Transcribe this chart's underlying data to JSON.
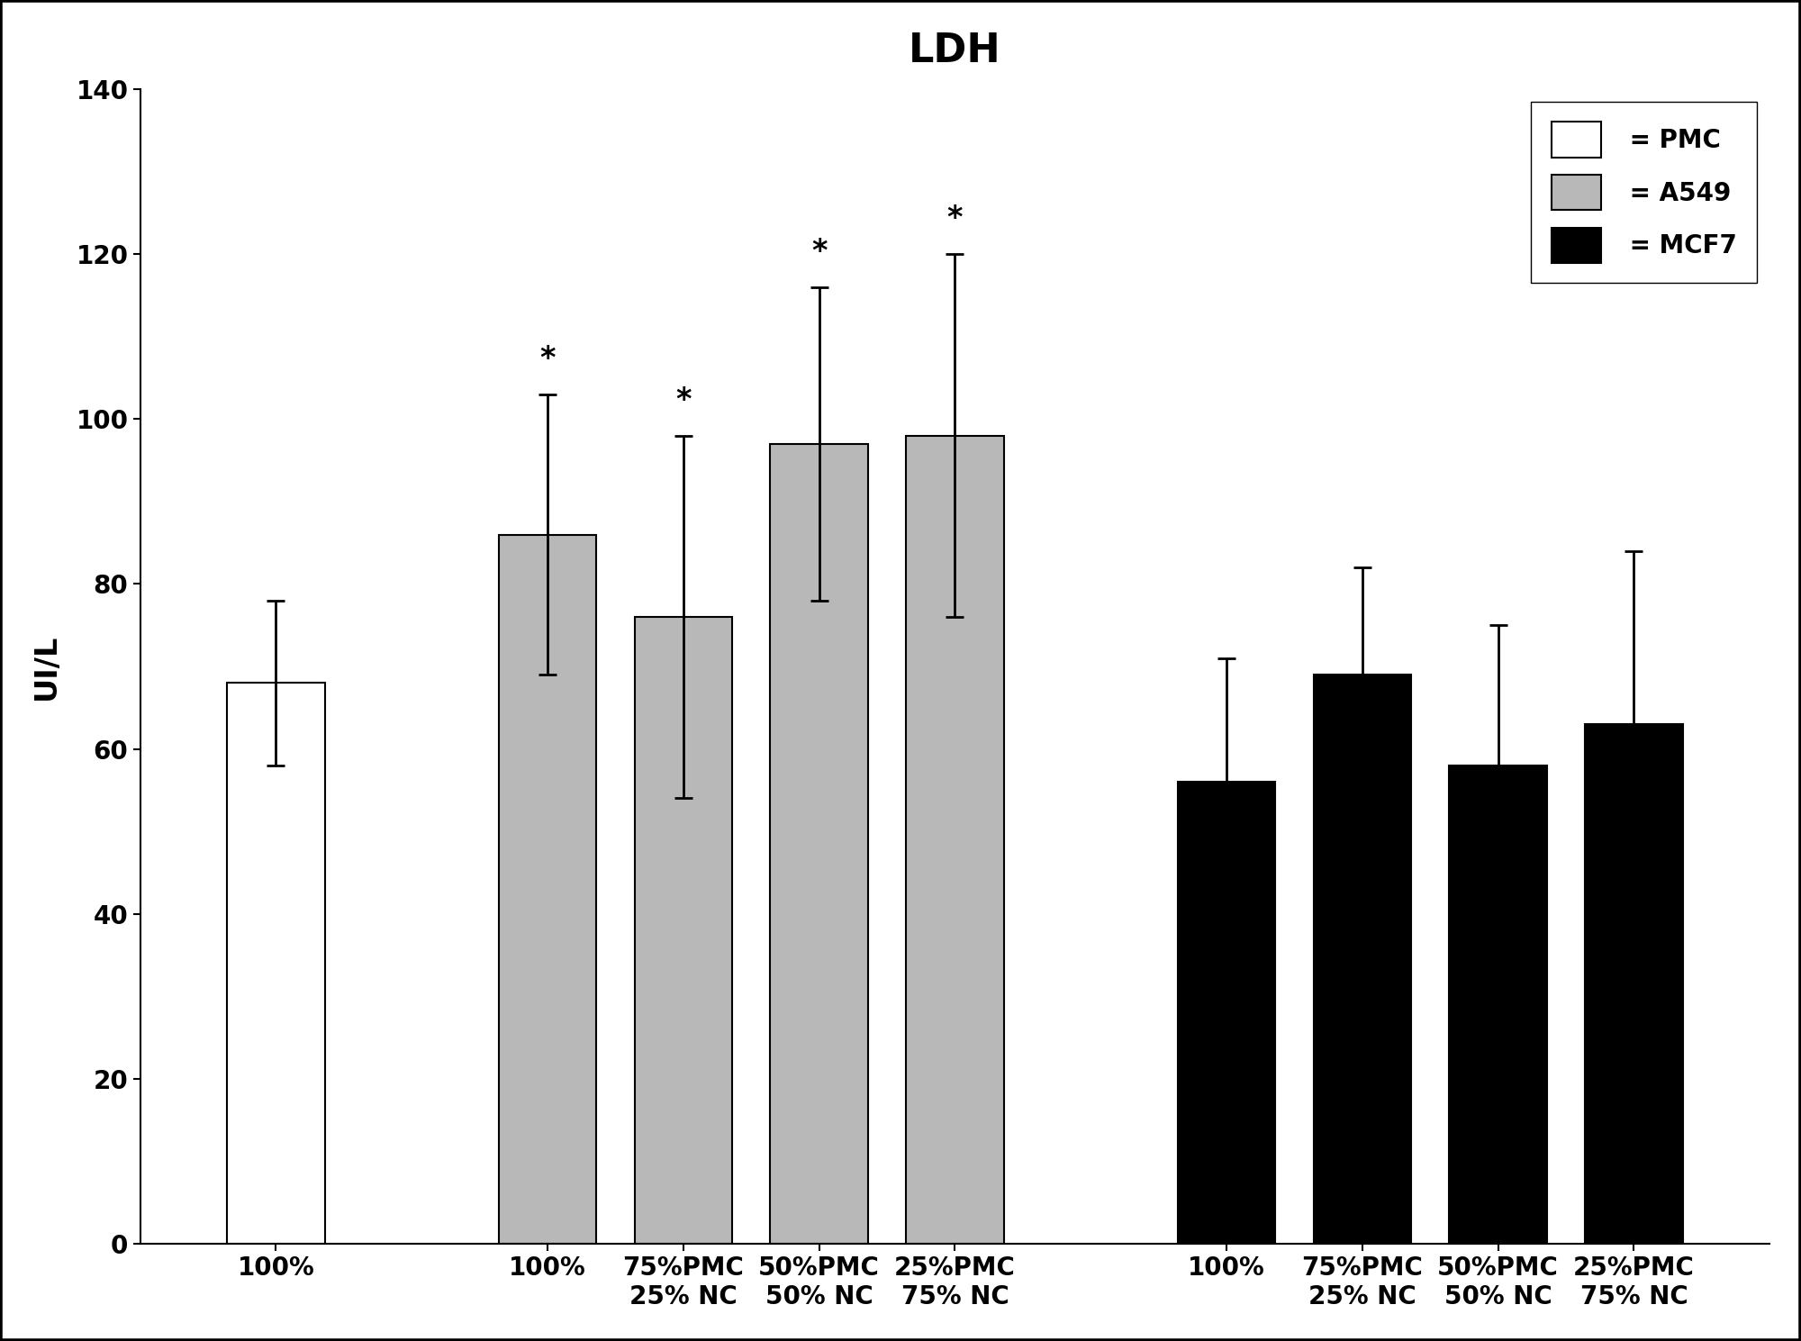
{
  "title": "LDH",
  "ylabel": "UI/L",
  "ylim": [
    0,
    140
  ],
  "yticks": [
    0,
    20,
    40,
    60,
    80,
    100,
    120,
    140
  ],
  "bars": [
    {
      "label": "100%",
      "value": 68,
      "error": 10,
      "color": "#ffffff",
      "edgecolor": "#000000",
      "star": false,
      "x": 1
    },
    {
      "label": "100%",
      "value": 86,
      "error": 17,
      "color": "#b8b8b8",
      "edgecolor": "#000000",
      "star": true,
      "x": 3
    },
    {
      "label": "75%PMC\n25% NC",
      "value": 76,
      "error": 22,
      "color": "#b8b8b8",
      "edgecolor": "#000000",
      "star": true,
      "x": 4
    },
    {
      "label": "50%PMC\n50% NC",
      "value": 97,
      "error": 19,
      "color": "#b8b8b8",
      "edgecolor": "#000000",
      "star": true,
      "x": 5
    },
    {
      "label": "25%PMC\n75% NC",
      "value": 98,
      "error": 22,
      "color": "#b8b8b8",
      "edgecolor": "#000000",
      "star": true,
      "x": 6
    },
    {
      "label": "100%",
      "value": 56,
      "error": 15,
      "color": "#000000",
      "edgecolor": "#000000",
      "star": false,
      "x": 8
    },
    {
      "label": "75%PMC\n25% NC",
      "value": 69,
      "error": 13,
      "color": "#000000",
      "edgecolor": "#000000",
      "star": false,
      "x": 9
    },
    {
      "label": "50%PMC\n50% NC",
      "value": 58,
      "error": 17,
      "color": "#000000",
      "edgecolor": "#000000",
      "star": false,
      "x": 10
    },
    {
      "label": "25%PMC\n75% NC",
      "value": 63,
      "error": 21,
      "color": "#000000",
      "edgecolor": "#000000",
      "star": false,
      "x": 11
    }
  ],
  "legend": [
    {
      "label": " = PMC",
      "color": "#ffffff",
      "edgecolor": "#000000"
    },
    {
      "label": " = A549",
      "color": "#b8b8b8",
      "edgecolor": "#000000"
    },
    {
      "label": " = MCF7",
      "color": "#000000",
      "edgecolor": "#000000"
    }
  ],
  "title_fontsize": 32,
  "axis_label_fontsize": 24,
  "tick_fontsize": 20,
  "legend_fontsize": 20,
  "bar_width": 0.72,
  "xlim": [
    0,
    12
  ],
  "background_color": "#ffffff",
  "outer_border_color": "#000000",
  "outer_border_linewidth": 4
}
